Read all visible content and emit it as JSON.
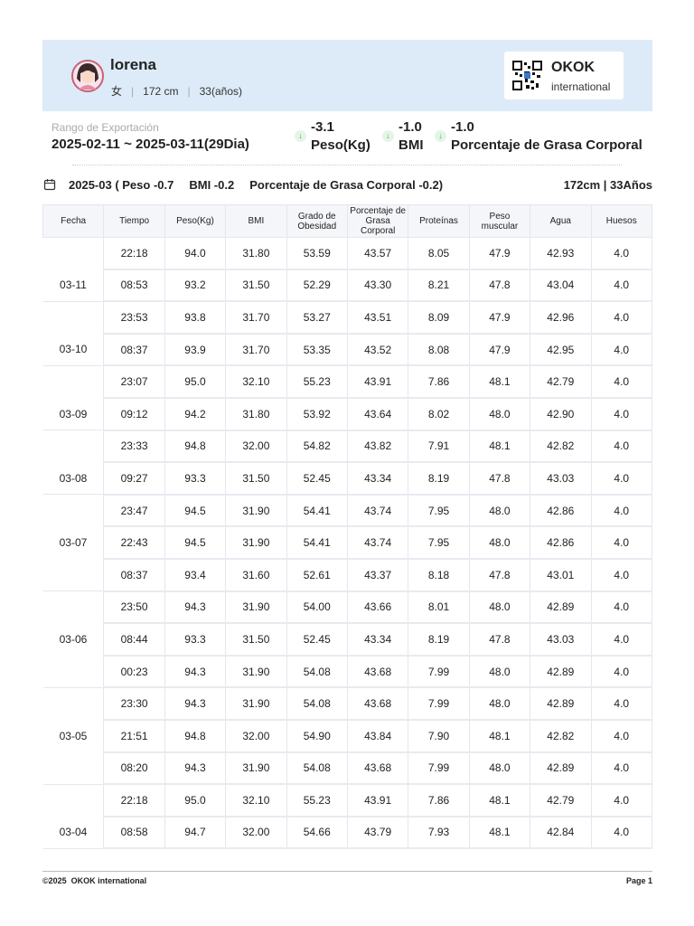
{
  "header": {
    "name": "lorena",
    "gender": "女",
    "height": "172 cm",
    "age": "33(años)",
    "brand": "OKOK",
    "brand_sub": "international"
  },
  "summary": {
    "range_label": "Rango de Exportación",
    "range": "2025-02-11 ~ 2025-03-11(29Dia)",
    "deltas": [
      {
        "value": "-3.1",
        "label": "Peso(Kg)"
      },
      {
        "value": "-1.0",
        "label": "BMI"
      },
      {
        "value": "-1.0",
        "label": "Porcentaje de Grasa Corporal"
      }
    ]
  },
  "month": {
    "parts": [
      "2025-03 ( Peso -0.7",
      "BMI -0.2",
      "Porcentaje de Grasa Corporal -0.2)"
    ],
    "profile": "172cm | 33Años"
  },
  "table": {
    "columns": [
      "Fecha",
      "Tiempo",
      "Peso(Kg)",
      "BMI",
      "Grado de Obesidad",
      "Porcentaje de Grasa Corporal",
      "Proteínas",
      "Peso muscular",
      "Agua",
      "Huesos"
    ],
    "groups": [
      {
        "date": "03-11",
        "rows": [
          [
            "22:18",
            "94.0",
            "31.80",
            "53.59",
            "43.57",
            "8.05",
            "47.9",
            "42.93",
            "4.0"
          ],
          [
            "08:53",
            "93.2",
            "31.50",
            "52.29",
            "43.30",
            "8.21",
            "47.8",
            "43.04",
            "4.0"
          ]
        ]
      },
      {
        "date": "03-10",
        "rows": [
          [
            "23:53",
            "93.8",
            "31.70",
            "53.27",
            "43.51",
            "8.09",
            "47.9",
            "42.96",
            "4.0"
          ],
          [
            "08:37",
            "93.9",
            "31.70",
            "53.35",
            "43.52",
            "8.08",
            "47.9",
            "42.95",
            "4.0"
          ]
        ]
      },
      {
        "date": "03-09",
        "rows": [
          [
            "23:07",
            "95.0",
            "32.10",
            "55.23",
            "43.91",
            "7.86",
            "48.1",
            "42.79",
            "4.0"
          ],
          [
            "09:12",
            "94.2",
            "31.80",
            "53.92",
            "43.64",
            "8.02",
            "48.0",
            "42.90",
            "4.0"
          ]
        ]
      },
      {
        "date": "03-08",
        "rows": [
          [
            "23:33",
            "94.8",
            "32.00",
            "54.82",
            "43.82",
            "7.91",
            "48.1",
            "42.82",
            "4.0"
          ],
          [
            "09:27",
            "93.3",
            "31.50",
            "52.45",
            "43.34",
            "8.19",
            "47.8",
            "43.03",
            "4.0"
          ]
        ]
      },
      {
        "date": "03-07",
        "rows": [
          [
            "23:47",
            "94.5",
            "31.90",
            "54.41",
            "43.74",
            "7.95",
            "48.0",
            "42.86",
            "4.0"
          ],
          [
            "22:43",
            "94.5",
            "31.90",
            "54.41",
            "43.74",
            "7.95",
            "48.0",
            "42.86",
            "4.0"
          ],
          [
            "08:37",
            "93.4",
            "31.60",
            "52.61",
            "43.37",
            "8.18",
            "47.8",
            "43.01",
            "4.0"
          ]
        ]
      },
      {
        "date": "03-06",
        "rows": [
          [
            "23:50",
            "94.3",
            "31.90",
            "54.00",
            "43.66",
            "8.01",
            "48.0",
            "42.89",
            "4.0"
          ],
          [
            "08:44",
            "93.3",
            "31.50",
            "52.45",
            "43.34",
            "8.19",
            "47.8",
            "43.03",
            "4.0"
          ],
          [
            "00:23",
            "94.3",
            "31.90",
            "54.08",
            "43.68",
            "7.99",
            "48.0",
            "42.89",
            "4.0"
          ]
        ]
      },
      {
        "date": "03-05",
        "rows": [
          [
            "23:30",
            "94.3",
            "31.90",
            "54.08",
            "43.68",
            "7.99",
            "48.0",
            "42.89",
            "4.0"
          ],
          [
            "21:51",
            "94.8",
            "32.00",
            "54.90",
            "43.84",
            "7.90",
            "48.1",
            "42.82",
            "4.0"
          ],
          [
            "08:20",
            "94.3",
            "31.90",
            "54.08",
            "43.68",
            "7.99",
            "48.0",
            "42.89",
            "4.0"
          ]
        ]
      },
      {
        "date": "03-04",
        "rows": [
          [
            "22:18",
            "95.0",
            "32.10",
            "55.23",
            "43.91",
            "7.86",
            "48.1",
            "42.79",
            "4.0"
          ],
          [
            "08:58",
            "94.7",
            "32.00",
            "54.66",
            "43.79",
            "7.93",
            "48.1",
            "42.84",
            "4.0"
          ]
        ]
      }
    ]
  },
  "footer": {
    "copyright": "©2025  OKOK international",
    "page": "Page 1"
  }
}
